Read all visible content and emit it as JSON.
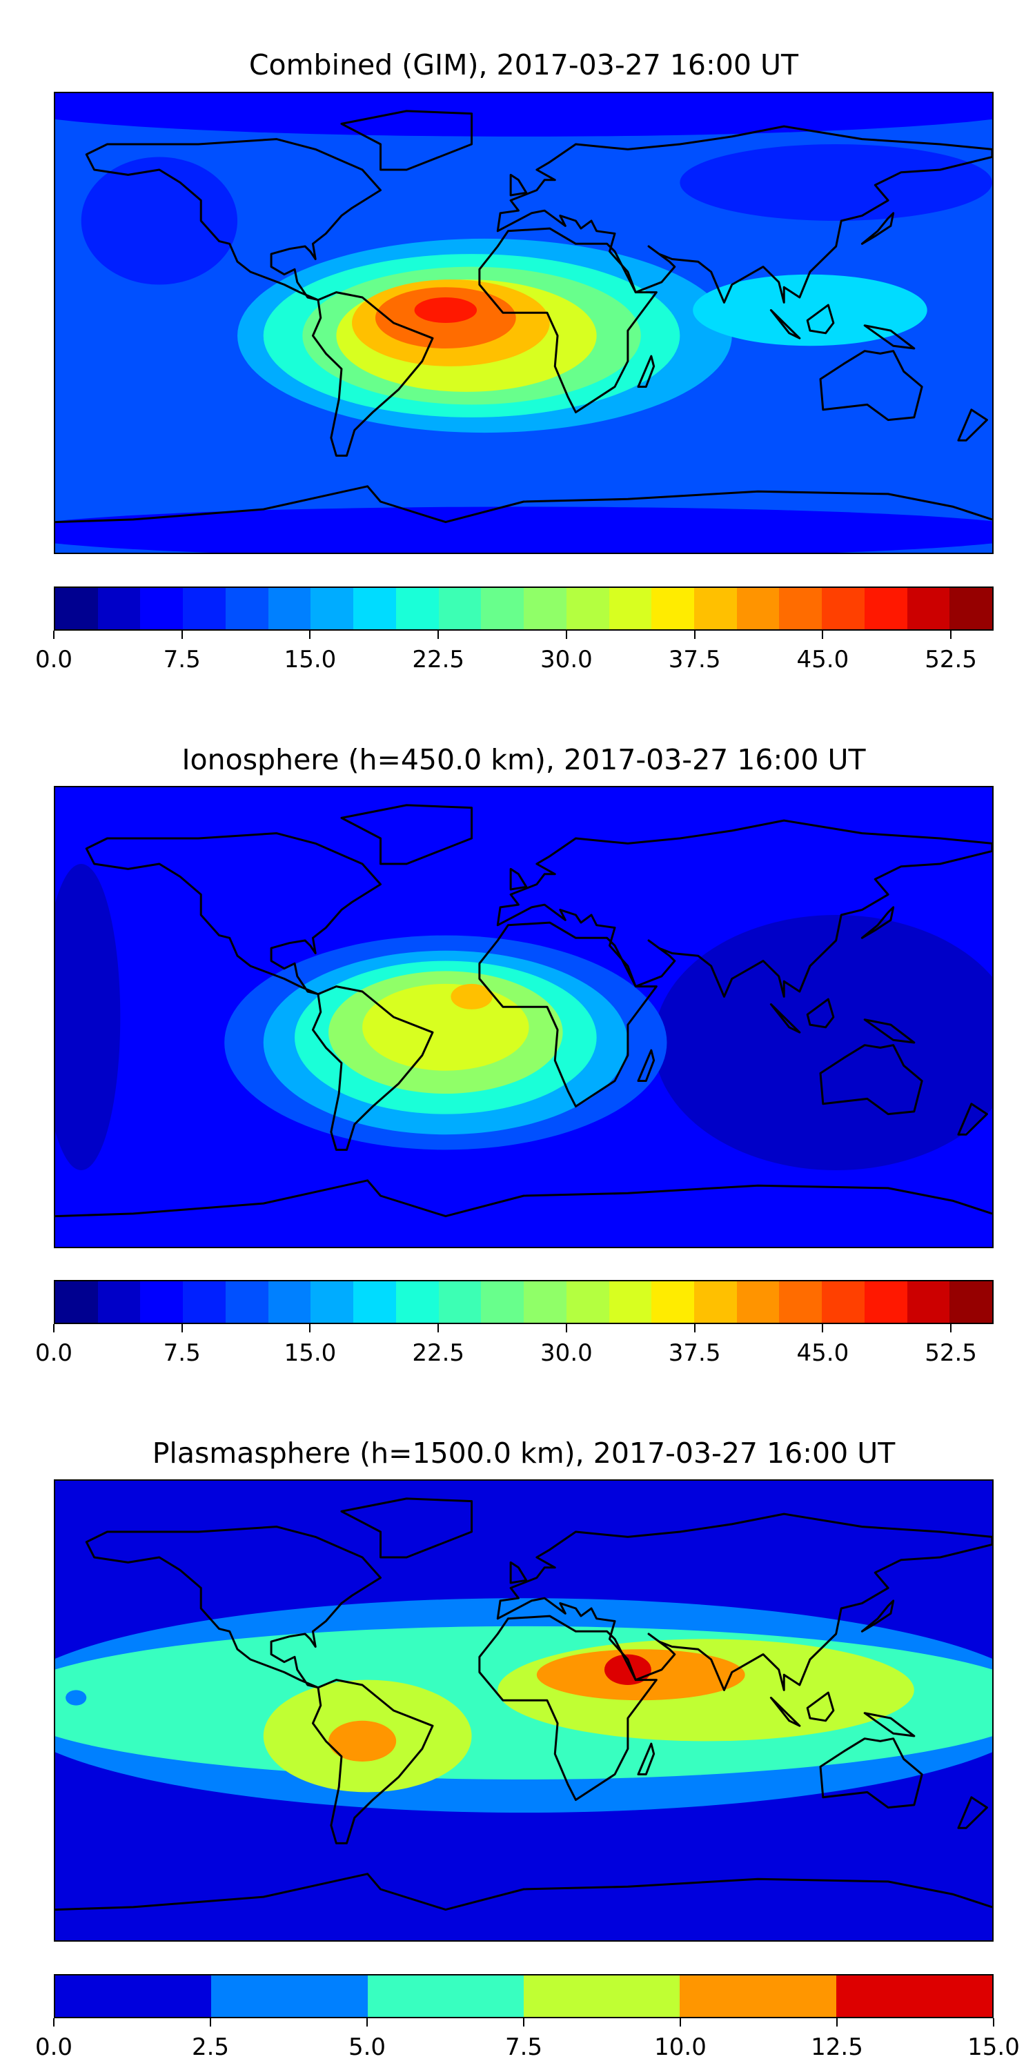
{
  "chart_data": [
    {
      "type": "heatmap",
      "title": "Combined (GIM), 2017-03-27 16:00 UT",
      "xlim": [
        -180,
        180
      ],
      "ylim": [
        -90,
        90
      ],
      "levels": {
        "min": 0.0,
        "max": 55.0,
        "step": 2.5
      },
      "colors": [
        "#000090",
        "#0000c8",
        "#0000ff",
        "#0020ff",
        "#0050ff",
        "#0080ff",
        "#00acff",
        "#00dcff",
        "#1affd8",
        "#3cffb4",
        "#68ff8c",
        "#90ff68",
        "#b4ff40",
        "#d8ff20",
        "#ffec00",
        "#ffc000",
        "#ff9400",
        "#ff6c00",
        "#ff4000",
        "#ff1800",
        "#cc0000",
        "#960000"
      ],
      "colorbar_ticks": [
        "0.0",
        "7.5",
        "15.0",
        "22.5",
        "30.0",
        "37.5",
        "45.0",
        "52.5"
      ],
      "colorbar_tick_values": [
        0,
        7.5,
        15,
        22.5,
        30,
        37.5,
        45,
        52.5
      ],
      "background_value": 11,
      "features": [
        {
          "lon": 0,
          "lat": 85,
          "rx": 200,
          "ry": 12,
          "value": 6
        },
        {
          "lon": 0,
          "lat": -82,
          "rx": 200,
          "ry": 10,
          "value": 6
        },
        {
          "lon": -140,
          "lat": 40,
          "rx": 30,
          "ry": 25,
          "value": 8
        },
        {
          "lon": 120,
          "lat": 55,
          "rx": 60,
          "ry": 15,
          "value": 8
        },
        {
          "lon": -15,
          "lat": -5,
          "rx": 95,
          "ry": 38,
          "value": 15
        },
        {
          "lon": -20,
          "lat": -5,
          "rx": 80,
          "ry": 32,
          "value": 20
        },
        {
          "lon": 110,
          "lat": 5,
          "rx": 45,
          "ry": 14,
          "value": 18
        },
        {
          "lon": -20,
          "lat": -5,
          "rx": 65,
          "ry": 27,
          "value": 26
        },
        {
          "lon": -22,
          "lat": -5,
          "rx": 50,
          "ry": 22,
          "value": 33
        },
        {
          "lon": -28,
          "lat": 0,
          "rx": 38,
          "ry": 17,
          "value": 39
        },
        {
          "lon": -30,
          "lat": 2,
          "rx": 27,
          "ry": 12,
          "value": 44
        },
        {
          "lon": -30,
          "lat": 5,
          "rx": 12,
          "ry": 5,
          "value": 49
        }
      ]
    },
    {
      "type": "heatmap",
      "title": "Ionosphere  (h=450.0 km), 2017-03-27 16:00 UT",
      "xlim": [
        -180,
        180
      ],
      "ylim": [
        -90,
        90
      ],
      "levels": {
        "min": 0.0,
        "max": 55.0,
        "step": 2.5
      },
      "colors": [
        "#000090",
        "#0000c8",
        "#0000ff",
        "#0020ff",
        "#0050ff",
        "#0080ff",
        "#00acff",
        "#00dcff",
        "#1affd8",
        "#3cffb4",
        "#68ff8c",
        "#90ff68",
        "#b4ff40",
        "#d8ff20",
        "#ffec00",
        "#ffc000",
        "#ff9400",
        "#ff6c00",
        "#ff4000",
        "#ff1800",
        "#cc0000",
        "#960000"
      ],
      "colorbar_ticks": [
        "0.0",
        "7.5",
        "15.0",
        "22.5",
        "30.0",
        "37.5",
        "45.0",
        "52.5"
      ],
      "colorbar_tick_values": [
        0,
        7.5,
        15,
        22.5,
        30,
        37.5,
        45,
        52.5
      ],
      "background_value": 6,
      "features": [
        {
          "lon": -170,
          "lat": 0,
          "rx": 15,
          "ry": 60,
          "value": 4
        },
        {
          "lon": 120,
          "lat": -10,
          "rx": 70,
          "ry": 50,
          "value": 4
        },
        {
          "lon": -30,
          "lat": -10,
          "rx": 85,
          "ry": 42,
          "value": 11
        },
        {
          "lon": -30,
          "lat": -10,
          "rx": 70,
          "ry": 36,
          "value": 16
        },
        {
          "lon": -30,
          "lat": -8,
          "rx": 58,
          "ry": 30,
          "value": 22
        },
        {
          "lon": -30,
          "lat": -6,
          "rx": 45,
          "ry": 24,
          "value": 28
        },
        {
          "lon": -30,
          "lat": -4,
          "rx": 32,
          "ry": 17,
          "value": 33
        },
        {
          "lon": -20,
          "lat": 8,
          "rx": 8,
          "ry": 5,
          "value": 38
        }
      ]
    },
    {
      "type": "heatmap",
      "title": "Plasmasphere (h=1500.0 km), 2017-03-27 16:00 UT",
      "xlim": [
        -180,
        180
      ],
      "ylim": [
        -90,
        90
      ],
      "levels": {
        "min": 0.0,
        "max": 15.0,
        "step": 2.5
      },
      "colors": [
        "#0000dd",
        "#0080ff",
        "#38ffc0",
        "#c0ff33",
        "#ff9600",
        "#dd0000"
      ],
      "colorbar_ticks": [
        "0.0",
        "2.5",
        "5.0",
        "7.5",
        "10.0",
        "12.5",
        "15.0"
      ],
      "colorbar_tick_values": [
        0,
        2.5,
        5,
        7.5,
        10,
        12.5,
        15
      ],
      "background_value": 1,
      "features": [
        {
          "lon": 0,
          "lat": 2,
          "rx": 200,
          "ry": 42,
          "value": 3.5
        },
        {
          "lon": 0,
          "lat": 3,
          "rx": 200,
          "ry": 30,
          "value": 6
        },
        {
          "lon": -172,
          "lat": 5,
          "rx": 4,
          "ry": 3,
          "value": 3.5
        },
        {
          "lon": -60,
          "lat": -10,
          "rx": 40,
          "ry": 22,
          "value": 8.5
        },
        {
          "lon": 70,
          "lat": 8,
          "rx": 80,
          "ry": 20,
          "value": 8.5
        },
        {
          "lon": -62,
          "lat": -12,
          "rx": 13,
          "ry": 8,
          "value": 11
        },
        {
          "lon": 45,
          "lat": 14,
          "rx": 40,
          "ry": 10,
          "value": 11
        },
        {
          "lon": 40,
          "lat": 16,
          "rx": 9,
          "ry": 6,
          "value": 13
        }
      ]
    }
  ]
}
